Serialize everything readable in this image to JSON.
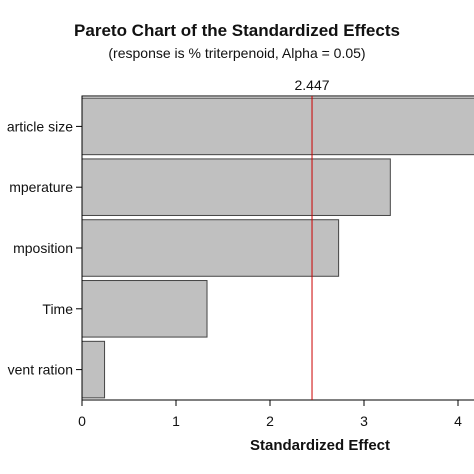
{
  "chart_data": {
    "type": "bar",
    "orientation": "horizontal",
    "title": "Pareto Chart of the Standardized Effects",
    "subtitle": "(response is % triterpenoid, Alpha = 0.05)",
    "xlabel": "Standardized Effect",
    "ylabel": "",
    "categories": [
      "article size",
      "mperature",
      "mposition",
      "Time",
      "vent ration"
    ],
    "values": [
      4.3,
      3.28,
      2.73,
      1.33,
      0.24
    ],
    "xlim": [
      0,
      4.2
    ],
    "xticks": [
      0,
      1,
      2,
      3,
      4
    ],
    "reference_line": {
      "value": 2.447,
      "label": "2.447",
      "color": "#cc0000"
    },
    "bar_color": "#c0c0c0",
    "bar_edge_color": "#444444",
    "grid": false,
    "legend": "none"
  }
}
